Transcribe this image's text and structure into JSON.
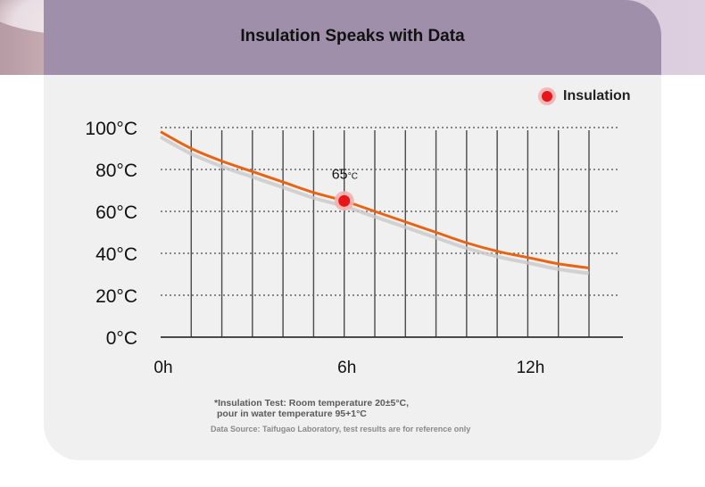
{
  "title": "Insulation Speaks with Data",
  "legend": {
    "label": "Insulation",
    "color": "#e8151b"
  },
  "footnote": {
    "line1": "*Insulation Test: Room temperature 20±5°C,",
    "line2": "pour in water temperature 95+1°C"
  },
  "source": "Data Source: Taifugao Laboratory, test results are for reference only",
  "chart_data": {
    "type": "line",
    "x_tick_labels": [
      "0h",
      "6h",
      "12h"
    ],
    "x_ticks": [
      0,
      6,
      12
    ],
    "y_tick_labels": [
      "0°C",
      "20°C",
      "40°C",
      "60°C",
      "80°C",
      "100°C"
    ],
    "y_ticks": [
      0,
      20,
      40,
      60,
      80,
      100
    ],
    "xlim": [
      0,
      14
    ],
    "ylim": [
      0,
      100
    ],
    "grid": "vertical solid, horizontal dotted",
    "series": [
      {
        "name": "Insulation",
        "color": "#e86414",
        "x": [
          0,
          1,
          2,
          3,
          4,
          5,
          6,
          7,
          8,
          9,
          10,
          11,
          12,
          13,
          14
        ],
        "y": [
          98,
          90,
          84,
          79,
          74,
          69,
          65,
          60,
          55,
          50,
          45,
          41,
          38,
          35,
          33
        ]
      }
    ],
    "highlight": {
      "x": 6,
      "y": 65,
      "value": "65",
      "unit": "°C"
    }
  }
}
